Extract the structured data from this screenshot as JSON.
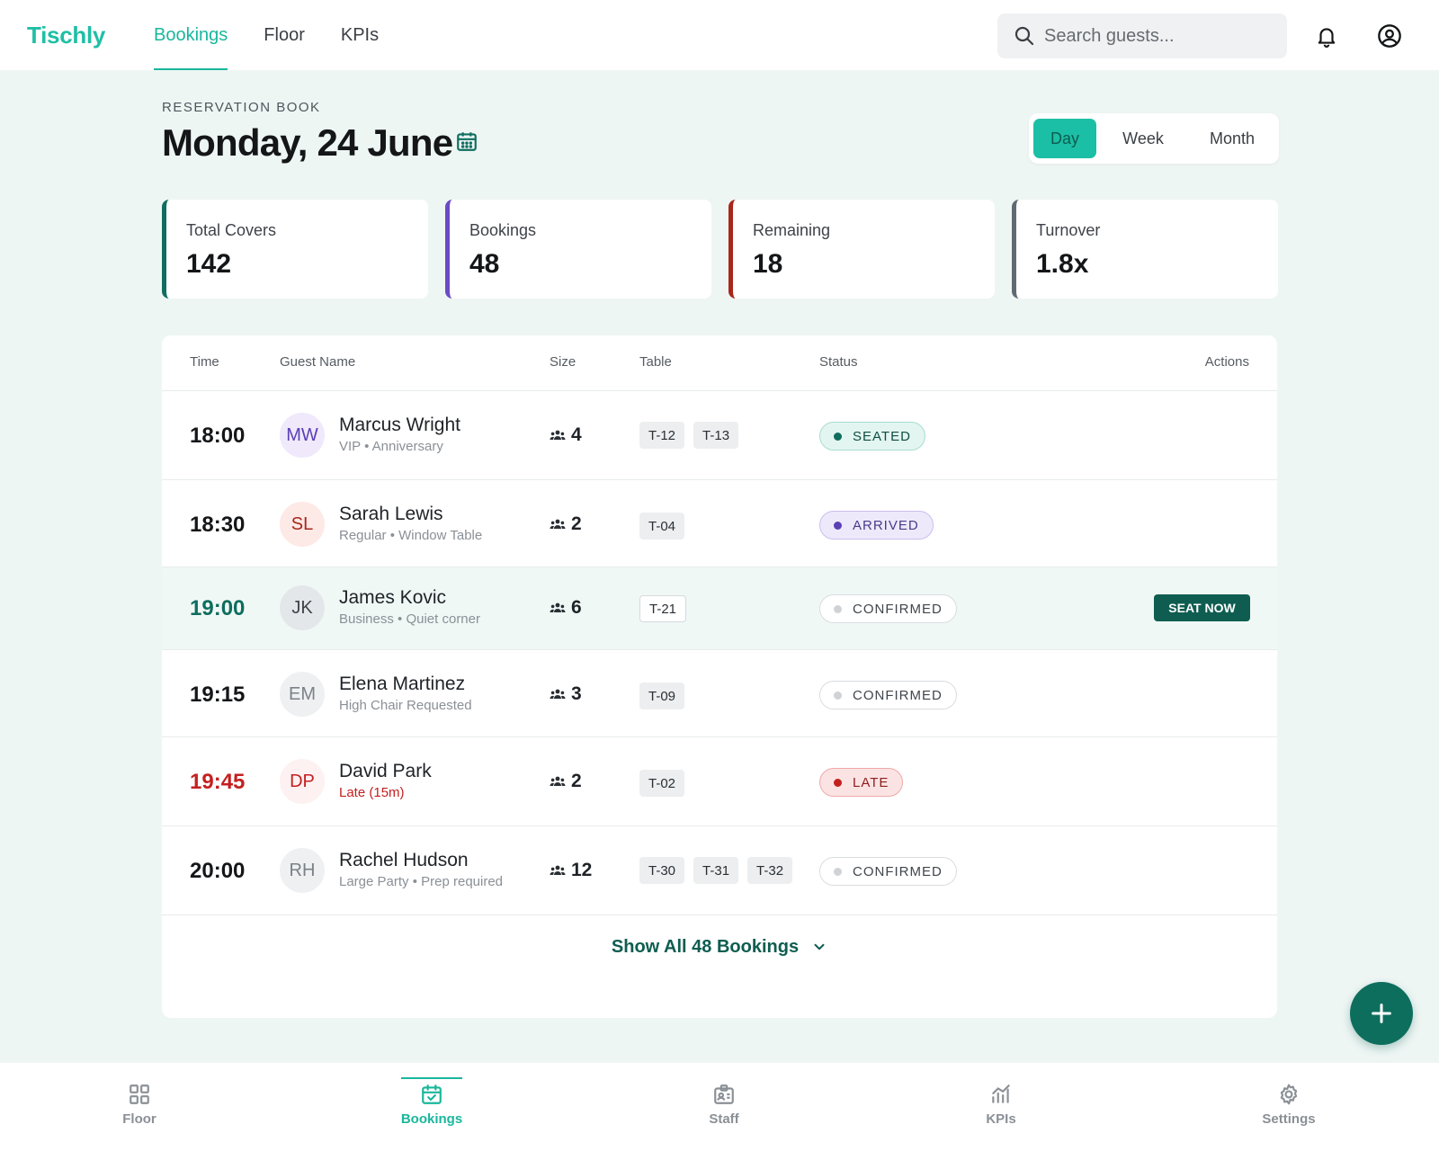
{
  "app": {
    "name": "Tischly"
  },
  "top_nav": {
    "items": [
      "Bookings",
      "Floor",
      "KPIs"
    ],
    "active": "Bookings"
  },
  "search": {
    "placeholder": "Search guests..."
  },
  "header": {
    "eyebrow": "RESERVATION BOOK",
    "title": "Monday, 24 June",
    "range": {
      "options": [
        "Day",
        "Week",
        "Month"
      ],
      "selected": "Day"
    }
  },
  "kpis": [
    {
      "label": "Total Covers",
      "value": "142",
      "accent": "#0f6e5f"
    },
    {
      "label": "Bookings",
      "value": "48",
      "accent": "#6a4bc4"
    },
    {
      "label": "Remaining",
      "value": "18",
      "accent": "#a8271b"
    },
    {
      "label": "Turnover",
      "value": "1.8x",
      "accent": "#5f6b73"
    }
  ],
  "table": {
    "columns": [
      "Time",
      "Guest Name",
      "Size",
      "Table",
      "Status",
      "Actions"
    ],
    "rows": [
      {
        "time": "18:00",
        "initials": "MW",
        "name": "Marcus Wright",
        "note": "VIP • Anniversary",
        "size": "4",
        "tables": [
          "T-12",
          "T-13"
        ],
        "status": "SEATED"
      },
      {
        "time": "18:30",
        "initials": "SL",
        "name": "Sarah Lewis",
        "note": "Regular • Window Table",
        "size": "2",
        "tables": [
          "T-04"
        ],
        "status": "ARRIVED"
      },
      {
        "time": "19:00",
        "initials": "JK",
        "name": "James Kovic",
        "note": "Business • Quiet corner",
        "size": "6",
        "tables": [
          "T-21"
        ],
        "status": "CONFIRMED",
        "action": "SEAT NOW"
      },
      {
        "time": "19:15",
        "initials": "EM",
        "name": "Elena Martinez",
        "note": "High Chair Requested",
        "size": "3",
        "tables": [
          "T-09"
        ],
        "status": "CONFIRMED"
      },
      {
        "time": "19:45",
        "initials": "DP",
        "name": "David Park",
        "note": "Late (15m)",
        "size": "2",
        "tables": [
          "T-02"
        ],
        "status": "LATE"
      },
      {
        "time": "20:00",
        "initials": "RH",
        "name": "Rachel Hudson",
        "note": "Large Party • Prep required",
        "size": "12",
        "tables": [
          "T-30",
          "T-31",
          "T-32"
        ],
        "status": "CONFIRMED"
      }
    ],
    "show_all": "Show All 48 Bookings"
  },
  "bottom_nav": {
    "items": [
      {
        "label": "Floor",
        "icon": "grid-icon"
      },
      {
        "label": "Bookings",
        "icon": "calendar-check-icon"
      },
      {
        "label": "Staff",
        "icon": "id-badge-icon"
      },
      {
        "label": "KPIs",
        "icon": "bar-chart-icon"
      },
      {
        "label": "Settings",
        "icon": "gear-icon"
      }
    ],
    "active": "Bookings"
  },
  "colors": {
    "brand": "#1fbfa5",
    "primary_dark": "#0e5d50",
    "late_red": "#c42020",
    "arrived_purple": "#5b3fb5",
    "background": "#eef6f4"
  },
  "icons": {
    "header": [
      "search-icon",
      "bell-icon",
      "user-circle-icon"
    ],
    "calendar": "calendar-icon",
    "party_size": "people-icon",
    "show_all": "chevron-down-icon",
    "fab": "plus-icon"
  }
}
